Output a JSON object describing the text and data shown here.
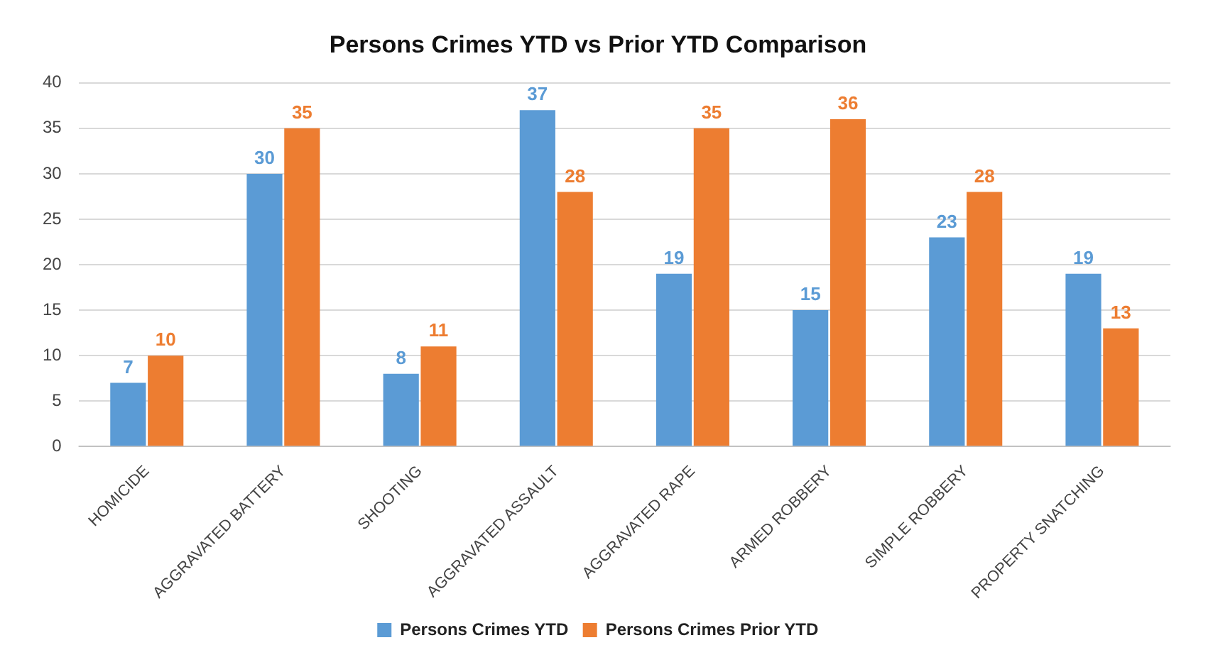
{
  "chart_data": {
    "type": "bar",
    "title": "Persons Crimes YTD vs Prior YTD Comparison",
    "categories": [
      "HOMICIDE",
      "AGGRAVATED BATTERY",
      "SHOOTING",
      "AGGRAVATED ASSAULT",
      "AGGRAVATED RAPE",
      "ARMED ROBBERY",
      "SIMPLE ROBBERY",
      "PROPERTY SNATCHING"
    ],
    "series": [
      {
        "name": "Persons Crimes YTD",
        "color": "#5b9bd5",
        "values": [
          7,
          30,
          8,
          37,
          19,
          15,
          23,
          19
        ]
      },
      {
        "name": "Persons Crimes Prior YTD",
        "color": "#ed7d31",
        "values": [
          10,
          35,
          11,
          28,
          35,
          36,
          28,
          13
        ]
      }
    ],
    "ylim": [
      0,
      40
    ],
    "yticks": [
      0,
      5,
      10,
      15,
      20,
      25,
      30,
      35,
      40
    ],
    "grid": "y",
    "legend": "bottom",
    "data_labels": true
  }
}
